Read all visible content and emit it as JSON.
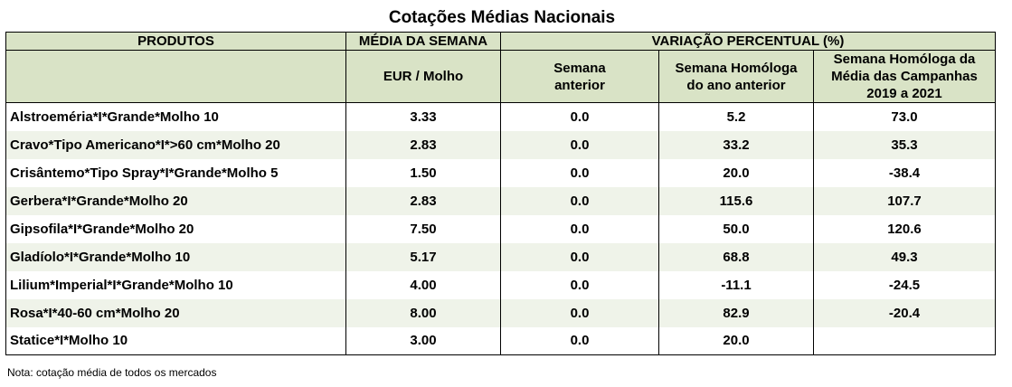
{
  "title": "Cotações Médias Nacionais",
  "header": {
    "products": "PRODUTOS",
    "weekly_avg": "MÉDIA DA SEMANA",
    "unit": "EUR / Molho",
    "variation": "VARIAÇÃO PERCENTUAL (%)",
    "prev_week_line1": "Semana",
    "prev_week_line2": "anterior",
    "homolog_year_line1": "Semana Homóloga",
    "homolog_year_line2": "do ano anterior",
    "homolog_camp_line1": "Semana Homóloga da",
    "homolog_camp_line2": "Média das Campanhas",
    "homolog_camp_line3": "2019 a 2021"
  },
  "rows": [
    {
      "product": "Alstroeméria*I*Grande*Molho 10",
      "avg": "3.33",
      "prev_week": "0.0",
      "homolog_year": "5.2",
      "homolog_camp": "73.0"
    },
    {
      "product": "Cravo*Tipo Americano*I*>60 cm*Molho 20",
      "avg": "2.83",
      "prev_week": "0.0",
      "homolog_year": "33.2",
      "homolog_camp": "35.3"
    },
    {
      "product": "Crisântemo*Tipo Spray*I*Grande*Molho 5",
      "avg": "1.50",
      "prev_week": "0.0",
      "homolog_year": "20.0",
      "homolog_camp": "-38.4"
    },
    {
      "product": "Gerbera*I*Grande*Molho 20",
      "avg": "2.83",
      "prev_week": "0.0",
      "homolog_year": "115.6",
      "homolog_camp": "107.7"
    },
    {
      "product": "Gipsofila*I*Grande*Molho 20",
      "avg": "7.50",
      "prev_week": "0.0",
      "homolog_year": "50.0",
      "homolog_camp": "120.6"
    },
    {
      "product": "Gladíolo*I*Grande*Molho 10",
      "avg": "5.17",
      "prev_week": "0.0",
      "homolog_year": "68.8",
      "homolog_camp": "49.3"
    },
    {
      "product": "Lilium*Imperial*I*Grande*Molho 10",
      "avg": "4.00",
      "prev_week": "0.0",
      "homolog_year": "-11.1",
      "homolog_camp": "-24.5"
    },
    {
      "product": "Rosa*I*40-60 cm*Molho 20",
      "avg": "8.00",
      "prev_week": "0.0",
      "homolog_year": "82.9",
      "homolog_camp": "-20.4"
    },
    {
      "product": "Statice*I*Molho 10",
      "avg": "3.00",
      "prev_week": "0.0",
      "homolog_year": "20.0",
      "homolog_camp": ""
    }
  ],
  "note": "Nota: cotação média de todos os mercados",
  "colors": {
    "header_bg": "#d9e3c6",
    "shaded_row_bg": "#eff3e9",
    "border": "#000000"
  }
}
